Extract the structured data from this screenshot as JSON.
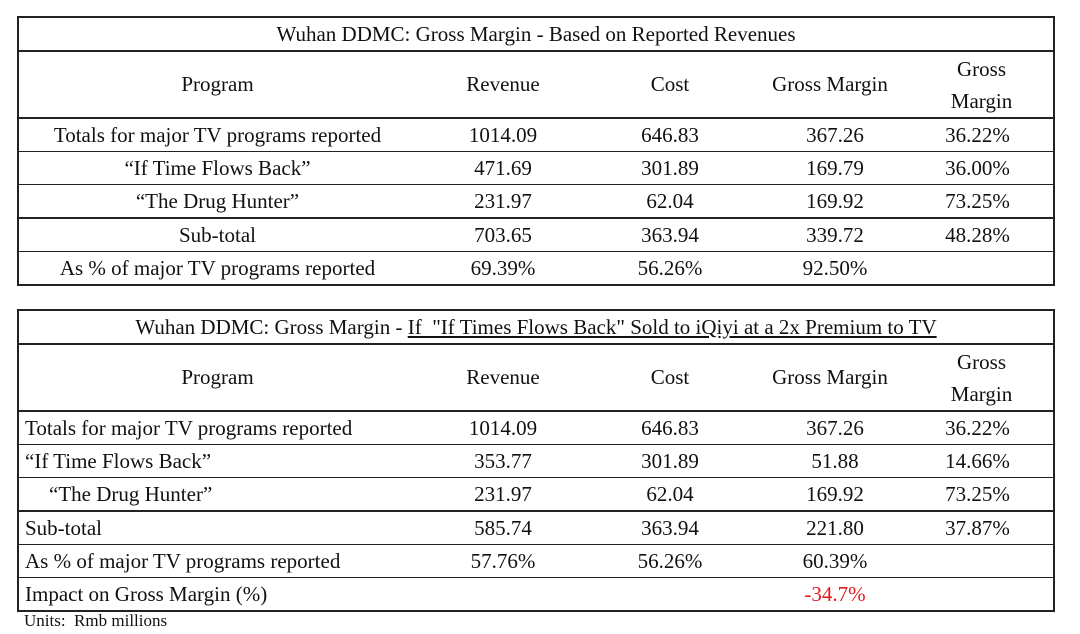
{
  "colors": {
    "border": "#222222",
    "text": "#111111",
    "negative": "#e1191e"
  },
  "table1": {
    "title": "Wuhan DDMC: Gross Margin - Based on Reported Revenues",
    "headers": {
      "program": "Program",
      "revenue": "Revenue",
      "cost": "Cost",
      "gross_margin": "Gross Margin",
      "gross_margin_pct_line1": "Gross",
      "gross_margin_pct_line2": "Margin"
    },
    "rows": [
      {
        "program": "Totals for major TV programs reported",
        "revenue": "1014.09",
        "cost": "646.83",
        "gross_margin": "367.26",
        "gm_pct": "36.22%"
      },
      {
        "program": "“If Time Flows Back”",
        "revenue": "471.69",
        "cost": "301.89",
        "gross_margin": "169.79",
        "gm_pct": "36.00%"
      },
      {
        "program": "“The Drug Hunter”",
        "revenue": "231.97",
        "cost": "62.04",
        "gross_margin": "169.92",
        "gm_pct": "73.25%"
      },
      {
        "program": "Sub-total",
        "revenue": "703.65",
        "cost": "363.94",
        "gross_margin": "339.72",
        "gm_pct": "48.28%"
      },
      {
        "program": "As % of major TV programs reported",
        "revenue": "69.39%",
        "cost": "56.26%",
        "gross_margin": "92.50%",
        "gm_pct": ""
      }
    ]
  },
  "table2": {
    "title_prefix": "Wuhan DDMC: Gross Margin - ",
    "title_underlined": "If  \"If Times Flows Back\" Sold to iQiyi at a 2x Premium to TV",
    "headers": {
      "program": "Program",
      "revenue": "Revenue",
      "cost": "Cost",
      "gross_margin": "Gross Margin",
      "gross_margin_pct_line1": "Gross",
      "gross_margin_pct_line2": "Margin"
    },
    "rows": [
      {
        "program": "Totals for major TV programs reported",
        "revenue": "1014.09",
        "cost": "646.83",
        "gross_margin": "367.26",
        "gm_pct": "36.22%"
      },
      {
        "program": "“If Time Flows Back”",
        "revenue": "353.77",
        "cost": "301.89",
        "gross_margin": "51.88",
        "gm_pct": "14.66%"
      },
      {
        "program": "“The Drug Hunter”",
        "revenue": "231.97",
        "cost": "62.04",
        "gross_margin": "169.92",
        "gm_pct": "73.25%"
      },
      {
        "program": "Sub-total",
        "revenue": "585.74",
        "cost": "363.94",
        "gross_margin": "221.80",
        "gm_pct": "37.87%"
      },
      {
        "program": "As % of major TV programs reported",
        "revenue": "57.76%",
        "cost": "56.26%",
        "gross_margin": "60.39%",
        "gm_pct": ""
      },
      {
        "program": "Impact on Gross Margin (%)",
        "revenue": "",
        "cost": "",
        "gross_margin": "-34.7%",
        "gm_pct": ""
      }
    ]
  },
  "footnote": "Units:  Rmb millions"
}
